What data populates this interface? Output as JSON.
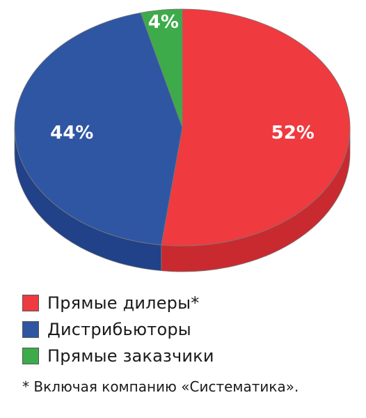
{
  "chart_data": {
    "type": "pie",
    "categories": [
      "Прямые дилеры*",
      "Дистрибьюторы",
      "Прямые заказчики"
    ],
    "values": [
      52,
      44,
      4
    ],
    "labels": [
      "52%",
      "44%",
      "4%"
    ],
    "colors": [
      "#ef3a3f",
      "#2f56a3",
      "#3dab4a"
    ],
    "side_colors": [
      "#c92a30",
      "#214189",
      "#2e8a3a"
    ]
  },
  "footnote": "* Включая компанию «Систематика»."
}
